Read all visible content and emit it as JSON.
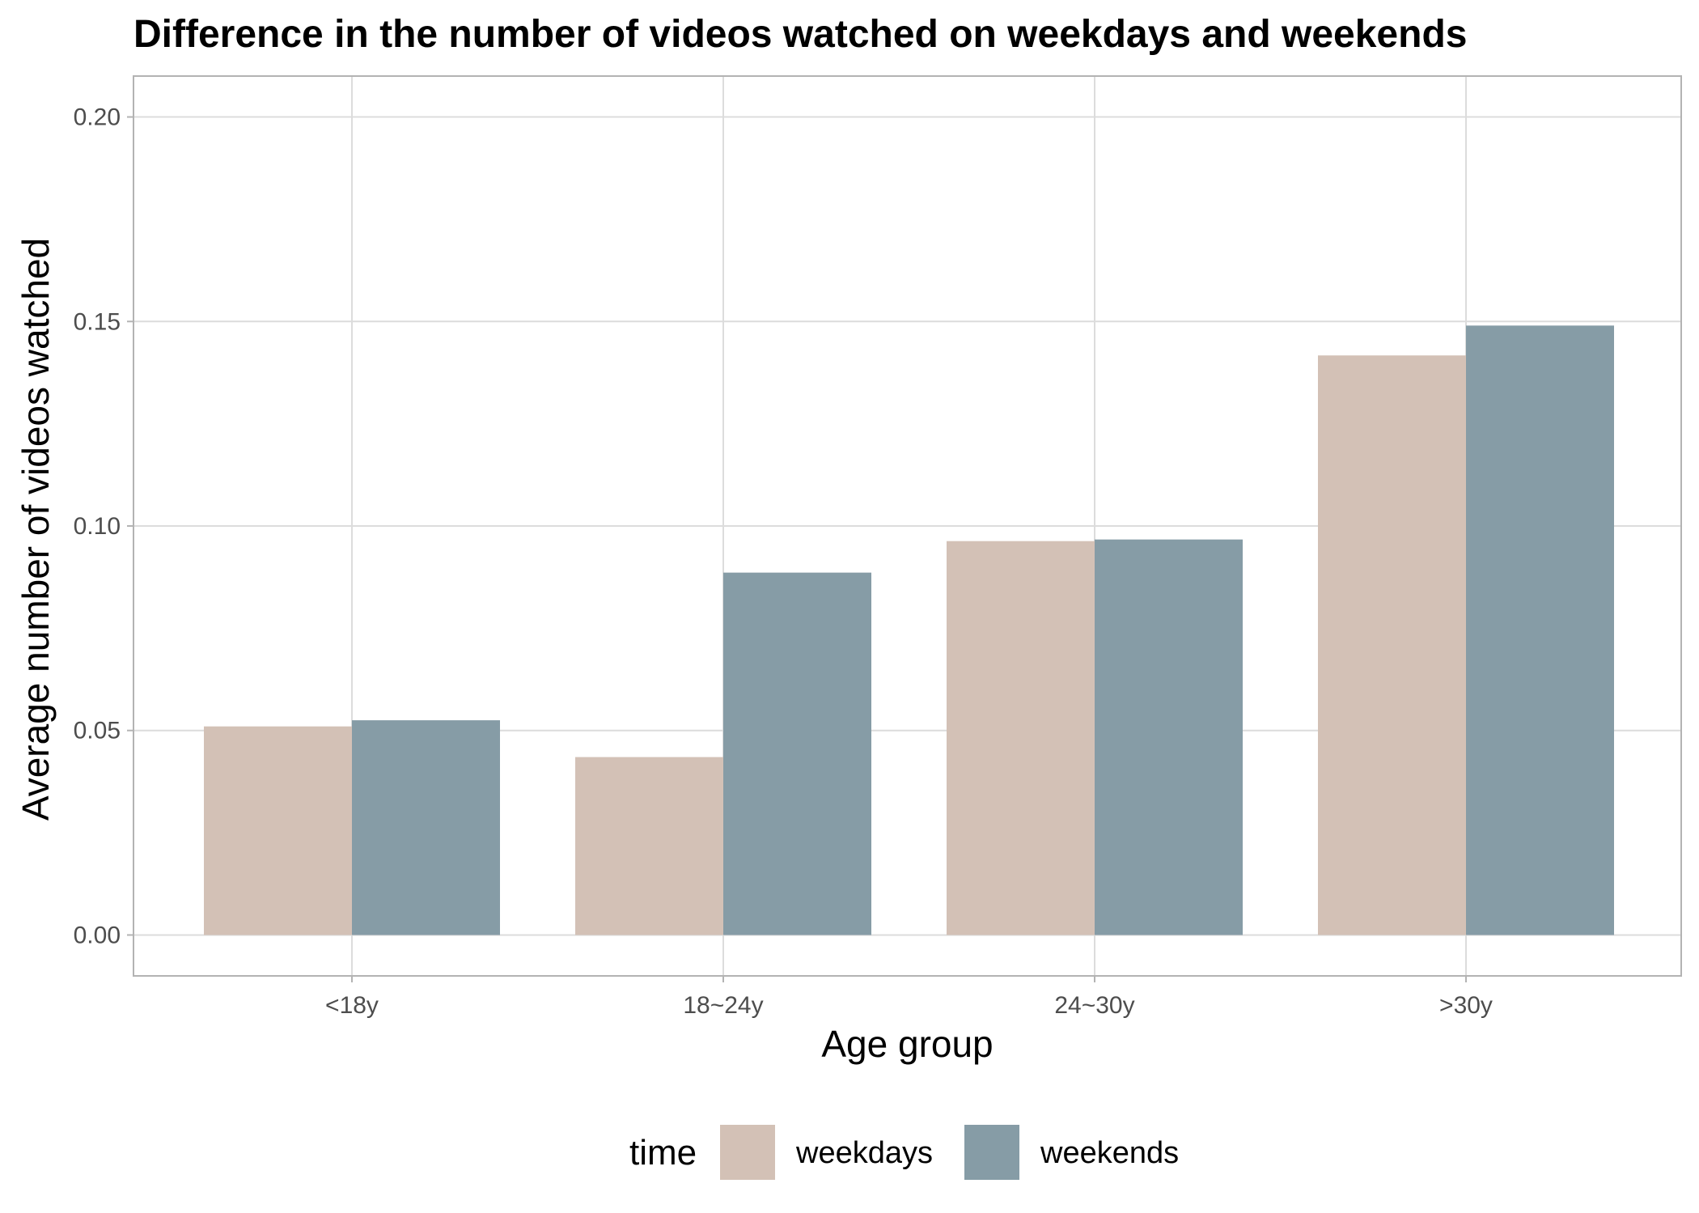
{
  "chart_data": {
    "type": "bar",
    "title": "Difference in the number of videos watched on weekdays and weekends",
    "xlabel": "Age group",
    "ylabel": "Average number of videos watched",
    "categories": [
      "<18y",
      "18~24y",
      "24~30y",
      ">30y"
    ],
    "series": [
      {
        "name": "weekdays",
        "color": "#d3c1b6",
        "values": [
          0.051,
          0.0435,
          0.0963,
          0.1417
        ]
      },
      {
        "name": "weekends",
        "color": "#869ca6",
        "values": [
          0.0525,
          0.0886,
          0.0967,
          0.149
        ]
      }
    ],
    "ylim": [
      -0.01,
      0.21
    ],
    "yticks": [
      0.0,
      0.05,
      0.1,
      0.15,
      0.2
    ],
    "ytick_labels": [
      "0.00",
      "0.05",
      "0.10",
      "0.15",
      "0.20"
    ],
    "grid": true,
    "legend": {
      "title": "time",
      "position": "bottom"
    }
  }
}
